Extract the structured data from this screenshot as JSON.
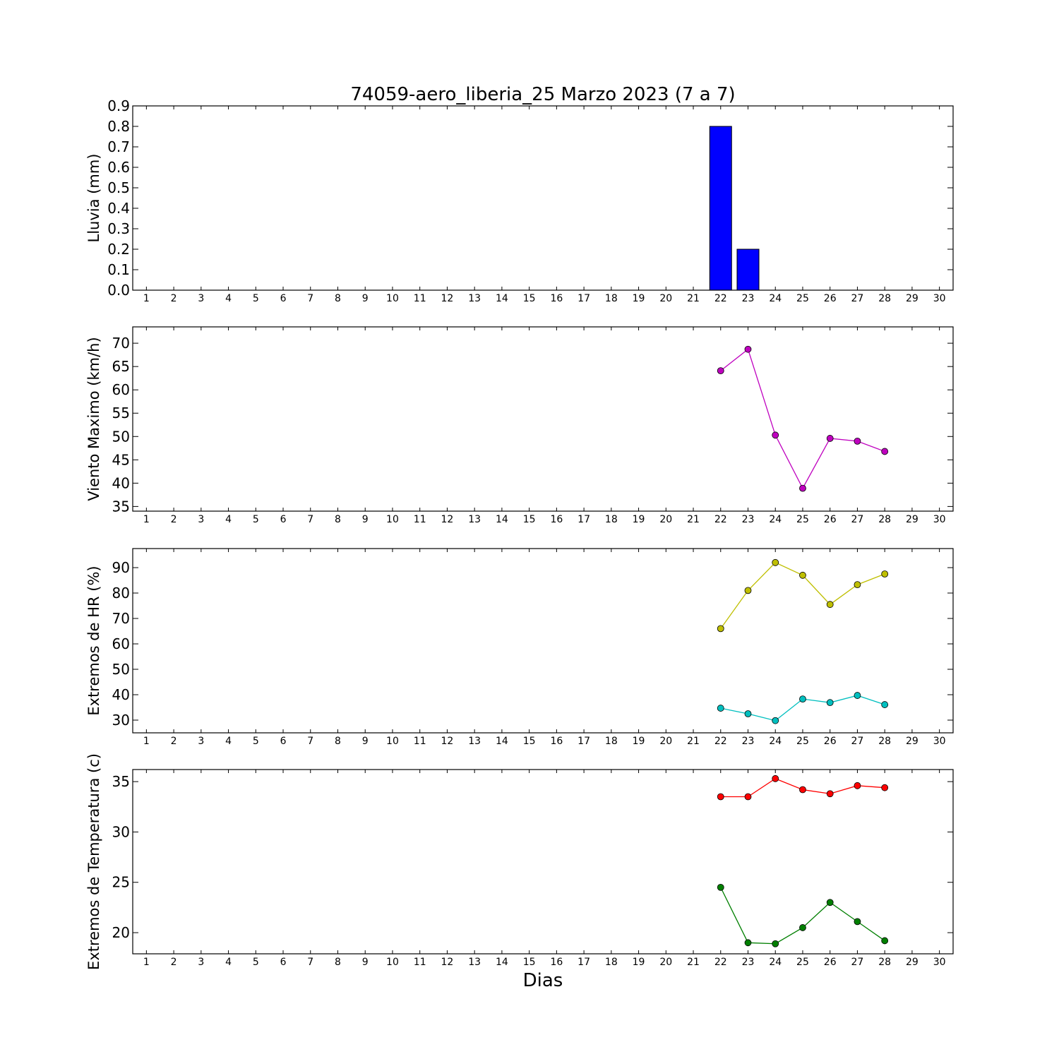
{
  "title": "74059-aero_liberia_25 Marzo 2023  (7 a 7)",
  "xlabel": "Dias",
  "colors": {
    "bar": "#0000ff",
    "viento": "#bf00bf",
    "hr_max": "#bfbf00",
    "hr_min": "#00bfbf",
    "t_max": "#ff0000",
    "t_min": "#007f00"
  },
  "chart_data": [
    {
      "type": "bar",
      "ylabel": "Lluvia (mm)",
      "xlim": [
        0.5,
        30.5
      ],
      "ylim": [
        0,
        0.9
      ],
      "xticks": [
        1,
        2,
        3,
        4,
        5,
        6,
        7,
        8,
        9,
        10,
        11,
        12,
        13,
        14,
        15,
        16,
        17,
        18,
        19,
        20,
        21,
        22,
        23,
        24,
        25,
        26,
        27,
        28,
        29,
        30
      ],
      "yticks": [
        "0.0",
        "0.1",
        "0.2",
        "0.3",
        "0.4",
        "0.5",
        "0.6",
        "0.7",
        "0.8",
        "0.9"
      ],
      "series": [
        {
          "x": [
            22,
            23,
            24,
            25,
            26,
            27,
            28
          ],
          "values": [
            0.8,
            0.2,
            0.0,
            0.0,
            0.0,
            0.0,
            0.0
          ],
          "color": "#0000ff"
        }
      ]
    },
    {
      "type": "line",
      "ylabel": "Viento Maximo (km/h)",
      "xlim": [
        0.5,
        30.5
      ],
      "ylim": [
        34,
        73.5
      ],
      "xticks": [
        1,
        2,
        3,
        4,
        5,
        6,
        7,
        8,
        9,
        10,
        11,
        12,
        13,
        14,
        15,
        16,
        17,
        18,
        19,
        20,
        21,
        22,
        23,
        24,
        25,
        26,
        27,
        28,
        29,
        30
      ],
      "yticks": [
        "35",
        "40",
        "45",
        "50",
        "55",
        "60",
        "65",
        "70"
      ],
      "series": [
        {
          "x": [
            22,
            23,
            24,
            25,
            26,
            27,
            28
          ],
          "values": [
            64.1,
            68.7,
            50.3,
            38.9,
            49.6,
            49.0,
            46.8
          ],
          "color": "#bf00bf"
        }
      ]
    },
    {
      "type": "line",
      "ylabel": "Extremos de HR (%)",
      "xlim": [
        0.5,
        30.5
      ],
      "ylim": [
        25,
        97.5
      ],
      "xticks": [
        1,
        2,
        3,
        4,
        5,
        6,
        7,
        8,
        9,
        10,
        11,
        12,
        13,
        14,
        15,
        16,
        17,
        18,
        19,
        20,
        21,
        22,
        23,
        24,
        25,
        26,
        27,
        28,
        29,
        30
      ],
      "yticks": [
        "30",
        "40",
        "50",
        "60",
        "70",
        "80",
        "90"
      ],
      "series": [
        {
          "x": [
            22,
            23,
            24,
            25,
            26,
            27,
            28
          ],
          "values": [
            66,
            81,
            92,
            87,
            75.5,
            83.3,
            87.5
          ],
          "color": "#bfbf00"
        },
        {
          "x": [
            22,
            23,
            24,
            25,
            26,
            27,
            28
          ],
          "values": [
            34.7,
            32.5,
            29.8,
            38.3,
            36.9,
            39.7,
            36.1
          ],
          "color": "#00bfbf"
        }
      ]
    },
    {
      "type": "line",
      "ylabel": "Extremos de Temperatura (c)",
      "xlim": [
        0.5,
        30.5
      ],
      "ylim": [
        17.9,
        36.2
      ],
      "xticks": [
        1,
        2,
        3,
        4,
        5,
        6,
        7,
        8,
        9,
        10,
        11,
        12,
        13,
        14,
        15,
        16,
        17,
        18,
        19,
        20,
        21,
        22,
        23,
        24,
        25,
        26,
        27,
        28,
        29,
        30
      ],
      "yticks": [
        "20",
        "25",
        "30",
        "35"
      ],
      "series": [
        {
          "x": [
            22,
            23,
            24,
            25,
            26,
            27,
            28
          ],
          "values": [
            33.5,
            33.5,
            35.3,
            34.2,
            33.8,
            34.6,
            34.4
          ],
          "color": "#ff0000"
        },
        {
          "x": [
            22,
            23,
            24,
            25,
            26,
            27,
            28
          ],
          "values": [
            24.5,
            19.0,
            18.9,
            20.5,
            23.0,
            21.1,
            19.2
          ],
          "color": "#007f00"
        }
      ]
    }
  ]
}
